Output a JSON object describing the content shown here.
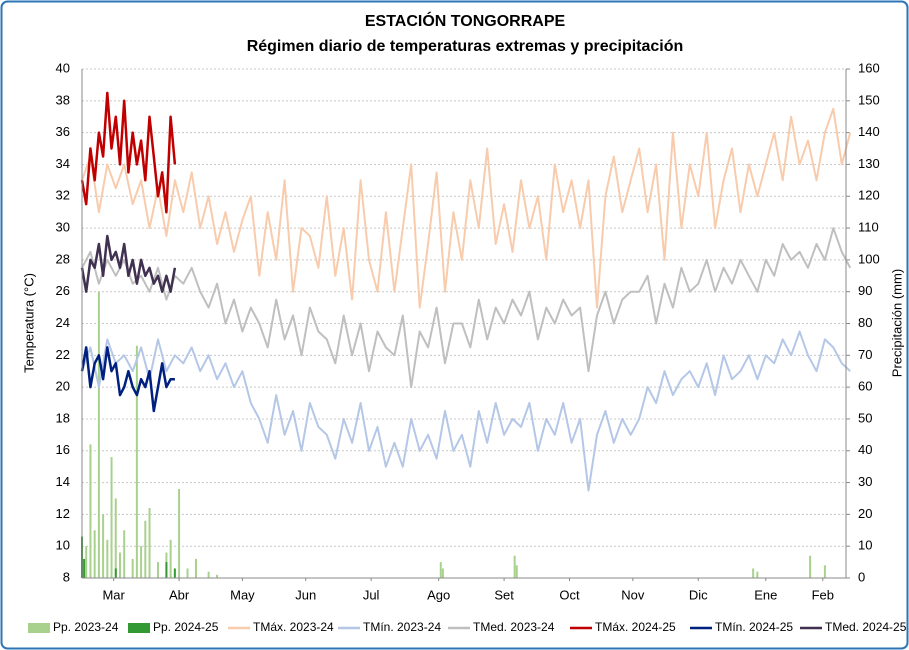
{
  "chart_data": {
    "type": "line",
    "title": "ESTACIÓN TONGORRAPE",
    "subtitle": "Régimen diario de temperaturas extremas y precipitación",
    "y_label": "Temperatura (°C)",
    "y2_label": "Precipitación (mm)",
    "xlim": [
      0,
      362
    ],
    "xticks": [
      {
        "value": 15,
        "label": "Mar"
      },
      {
        "value": 46,
        "label": "Abr"
      },
      {
        "value": 76,
        "label": "May"
      },
      {
        "value": 106,
        "label": "Jun"
      },
      {
        "value": 137,
        "label": "Jul"
      },
      {
        "value": 169,
        "label": "Ago"
      },
      {
        "value": 200,
        "label": "Set"
      },
      {
        "value": 231,
        "label": "Oct"
      },
      {
        "value": 261,
        "label": "Nov"
      },
      {
        "value": 292,
        "label": "Dic"
      },
      {
        "value": 324,
        "label": "Ene"
      },
      {
        "value": 351,
        "label": "Feb"
      }
    ],
    "ylim": [
      8,
      40
    ],
    "yticks": [
      8,
      10,
      12,
      14,
      16,
      18,
      20,
      22,
      24,
      26,
      28,
      30,
      32,
      34,
      36,
      38,
      40
    ],
    "y2lim": [
      0,
      160
    ],
    "y2ticks": [
      0,
      10,
      20,
      30,
      40,
      50,
      60,
      70,
      80,
      90,
      100,
      110,
      120,
      130,
      140,
      150,
      160
    ],
    "grid": true,
    "series": [
      {
        "name": "Pp. 2023-24",
        "type": "bar",
        "axis": "y2",
        "color": "#a9d18e",
        "x": [
          2,
          4,
          6,
          8,
          10,
          12,
          14,
          16,
          18,
          20,
          24,
          26,
          28,
          30,
          32,
          36,
          40,
          42,
          46,
          50,
          54,
          60,
          64,
          170,
          171,
          205,
          206,
          318,
          320,
          345,
          352
        ],
        "values": [
          10,
          42,
          15,
          90,
          20,
          12,
          38,
          25,
          8,
          15,
          6,
          73,
          10,
          18,
          22,
          5,
          8,
          12,
          28,
          3,
          6,
          2,
          1,
          5,
          3,
          7,
          4,
          3,
          2,
          7,
          4
        ]
      },
      {
        "name": "Pp. 2024-25",
        "type": "bar",
        "axis": "y2",
        "color": "#339933",
        "x": [
          0,
          1,
          16,
          40,
          44
        ],
        "values": [
          13,
          6,
          3,
          5,
          3
        ]
      },
      {
        "name": "TMáx. 2023-24",
        "type": "line",
        "color": "#f8cbad",
        "width": 2,
        "x": [
          0,
          4,
          8,
          12,
          16,
          20,
          24,
          28,
          32,
          36,
          40,
          44,
          48,
          52,
          56,
          60,
          64,
          68,
          72,
          76,
          80,
          84,
          88,
          92,
          96,
          100,
          104,
          108,
          112,
          116,
          120,
          124,
          128,
          132,
          136,
          140,
          144,
          148,
          152,
          156,
          160,
          164,
          168,
          172,
          176,
          180,
          184,
          188,
          192,
          196,
          200,
          204,
          208,
          212,
          216,
          220,
          224,
          228,
          232,
          236,
          240,
          244,
          248,
          252,
          256,
          260,
          264,
          268,
          272,
          276,
          280,
          284,
          288,
          292,
          296,
          300,
          304,
          308,
          312,
          316,
          320,
          324,
          328,
          332,
          336,
          340,
          344,
          348,
          352,
          356,
          360,
          364
        ],
        "values": [
          33,
          34.5,
          31,
          34,
          32.5,
          34,
          31.5,
          33,
          30,
          32.5,
          29.5,
          33,
          31,
          33.5,
          30,
          32,
          29,
          31,
          28.5,
          30.5,
          32,
          27,
          31,
          28,
          33,
          26,
          30,
          29.5,
          27.5,
          32,
          27,
          30,
          25.5,
          33,
          28,
          26,
          31,
          26,
          30,
          34,
          25,
          29,
          33.5,
          26,
          31,
          28,
          33,
          30,
          35,
          29,
          31.5,
          28.5,
          33,
          30,
          32,
          28,
          34,
          31,
          33,
          30,
          33,
          25,
          32,
          34.5,
          31,
          33,
          35,
          31,
          34,
          28,
          36,
          30,
          34,
          32,
          36,
          30,
          33,
          35,
          31,
          34,
          32,
          34,
          36,
          33,
          37,
          34,
          35.5,
          33,
          36,
          37.5,
          34,
          36
        ]
      },
      {
        "name": "TMín. 2023-24",
        "type": "line",
        "color": "#b4c7e7",
        "width": 2,
        "x": [
          0,
          4,
          8,
          12,
          16,
          20,
          24,
          28,
          32,
          36,
          40,
          44,
          48,
          52,
          56,
          60,
          64,
          68,
          72,
          76,
          80,
          84,
          88,
          92,
          96,
          100,
          104,
          108,
          112,
          116,
          120,
          124,
          128,
          132,
          136,
          140,
          144,
          148,
          152,
          156,
          160,
          164,
          168,
          172,
          176,
          180,
          184,
          188,
          192,
          196,
          200,
          204,
          208,
          212,
          216,
          220,
          224,
          228,
          232,
          236,
          240,
          244,
          248,
          252,
          256,
          260,
          264,
          268,
          272,
          276,
          280,
          284,
          288,
          292,
          296,
          300,
          304,
          308,
          312,
          316,
          320,
          324,
          328,
          332,
          336,
          340,
          344,
          348,
          352,
          356,
          360,
          364
        ],
        "values": [
          21,
          22.5,
          20,
          23,
          21.5,
          22,
          21,
          22.5,
          20.5,
          23,
          21,
          22,
          21.5,
          22.5,
          21,
          22,
          20.5,
          21.5,
          20,
          21,
          19,
          18,
          16.5,
          19.5,
          17,
          18.5,
          16,
          19,
          17.5,
          17,
          15.5,
          18,
          16.5,
          19,
          16,
          17.5,
          15,
          16.5,
          15,
          18,
          16,
          17,
          15.5,
          18.5,
          16,
          17,
          15,
          18.5,
          16.5,
          19,
          17,
          18,
          17.5,
          19,
          16,
          18,
          17,
          19,
          16.5,
          18,
          13.5,
          17,
          18.5,
          16.5,
          18,
          17,
          18,
          20,
          19,
          21,
          19.5,
          20.5,
          21,
          20,
          21.5,
          19.5,
          22,
          20.5,
          21,
          22,
          20.5,
          22,
          21.5,
          23,
          22,
          23.5,
          22,
          21,
          23,
          22.5,
          21.5,
          21
        ]
      },
      {
        "name": "TMed. 2023-24",
        "type": "line",
        "color": "#bfbfbf",
        "width": 2,
        "x": [
          0,
          4,
          8,
          12,
          16,
          20,
          24,
          28,
          32,
          36,
          40,
          44,
          48,
          52,
          56,
          60,
          64,
          68,
          72,
          76,
          80,
          84,
          88,
          92,
          96,
          100,
          104,
          108,
          112,
          116,
          120,
          124,
          128,
          132,
          136,
          140,
          144,
          148,
          152,
          156,
          160,
          164,
          168,
          172,
          176,
          180,
          184,
          188,
          192,
          196,
          200,
          204,
          208,
          212,
          216,
          220,
          224,
          228,
          232,
          236,
          240,
          244,
          248,
          252,
          256,
          260,
          264,
          268,
          272,
          276,
          280,
          284,
          288,
          292,
          296,
          300,
          304,
          308,
          312,
          316,
          320,
          324,
          328,
          332,
          336,
          340,
          344,
          348,
          352,
          356,
          360,
          364
        ],
        "values": [
          27.5,
          28.5,
          26.5,
          28,
          27,
          28,
          26.5,
          27,
          26,
          27.5,
          25.5,
          27,
          26.5,
          27.5,
          26,
          25,
          26.5,
          24,
          25.5,
          23.5,
          25,
          24,
          22.5,
          25.5,
          23,
          24.5,
          22,
          25,
          23.5,
          23,
          21.5,
          24.5,
          22,
          24,
          21,
          23.5,
          22.5,
          22,
          24.5,
          20,
          23.5,
          22.5,
          25,
          21.5,
          24,
          24,
          22.5,
          25.5,
          23,
          25,
          24,
          25.5,
          24.5,
          26,
          23,
          25,
          24,
          25.5,
          24.5,
          25,
          21,
          24.5,
          26,
          24,
          25.5,
          26,
          26,
          27,
          24,
          26.5,
          25,
          27.5,
          26,
          26.5,
          28,
          26,
          27.5,
          26.5,
          28,
          27,
          26,
          28,
          27,
          29,
          28,
          28.5,
          27.5,
          29,
          28,
          30,
          28.5,
          27.5
        ]
      },
      {
        "name": "TMáx. 2024-25",
        "type": "line",
        "color": "#c00000",
        "width": 2.5,
        "x": [
          0,
          2,
          4,
          6,
          8,
          10,
          12,
          14,
          16,
          18,
          20,
          22,
          24,
          26,
          28,
          30,
          32,
          34,
          36,
          38,
          40,
          42,
          44
        ],
        "values": [
          33,
          31.5,
          35,
          33,
          36,
          34.5,
          38.5,
          35,
          37,
          34,
          38,
          33.5,
          36,
          34,
          35.5,
          33,
          37,
          34.5,
          32,
          33.5,
          31,
          37,
          34
        ]
      },
      {
        "name": "TMín. 2024-25",
        "type": "line",
        "color": "#002080",
        "width": 2.5,
        "x": [
          0,
          2,
          4,
          6,
          8,
          10,
          12,
          14,
          16,
          18,
          20,
          22,
          24,
          26,
          28,
          30,
          32,
          34,
          36,
          38,
          40,
          42,
          44
        ],
        "values": [
          21,
          22.5,
          20,
          21.5,
          22,
          20.5,
          22.5,
          21,
          21.5,
          19.5,
          20,
          21,
          20,
          19.5,
          20.5,
          20,
          21,
          18.5,
          20,
          21.5,
          20,
          20.5,
          20.5
        ]
      },
      {
        "name": "TMed. 2024-25",
        "type": "line",
        "color": "#403151",
        "width": 2.5,
        "x": [
          0,
          2,
          4,
          6,
          8,
          10,
          12,
          14,
          16,
          18,
          20,
          22,
          24,
          26,
          28,
          30,
          32,
          34,
          36,
          38,
          40,
          42,
          44
        ],
        "values": [
          27.5,
          26,
          28,
          27.5,
          29,
          27,
          29.5,
          28,
          28.5,
          27.5,
          29,
          27,
          28,
          26.5,
          28,
          27,
          27.5,
          26.5,
          27,
          26,
          27,
          26,
          27.5
        ]
      }
    ]
  }
}
